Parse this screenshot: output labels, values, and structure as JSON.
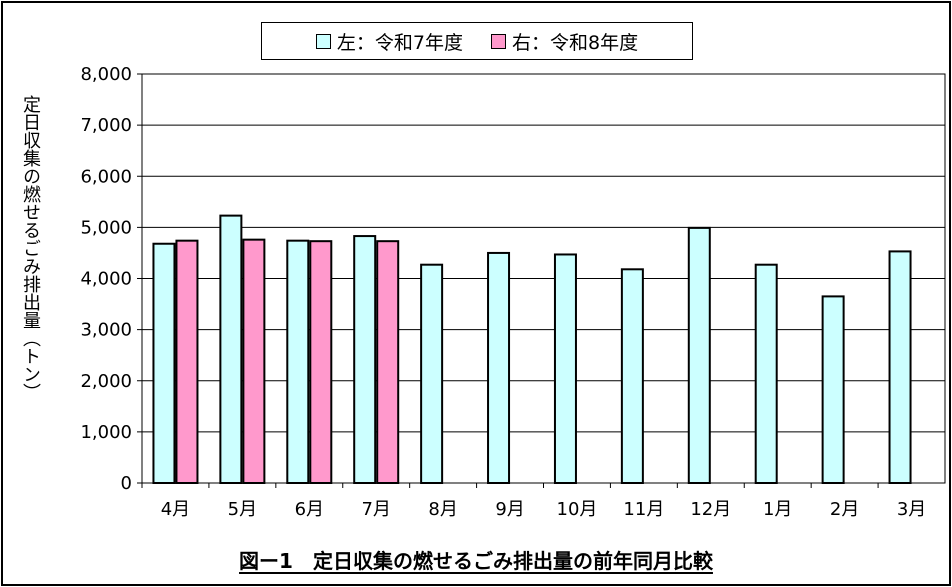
{
  "chart_data": {
    "type": "bar",
    "title": "図ー1　定日収集の燃せるごみ排出量の前年同月比較",
    "ylabel": "定日収集の燃せるごみ排出量（トン）",
    "xlabel": "",
    "ylim": [
      0,
      8000
    ],
    "yticks": [
      "0",
      "1,000",
      "2,000",
      "3,000",
      "4,000",
      "5,000",
      "6,000",
      "7,000",
      "8,000"
    ],
    "grid": true,
    "legend_position": "top",
    "categories": [
      "4月",
      "5月",
      "6月",
      "7月",
      "8月",
      "9月",
      "10月",
      "11月",
      "12月",
      "1月",
      "2月",
      "3月"
    ],
    "series": [
      {
        "name": "左：令和7年度",
        "color": "#ccffff",
        "values": [
          4680,
          5230,
          4740,
          4830,
          4270,
          4500,
          4470,
          4180,
          4990,
          4270,
          3650,
          4530
        ]
      },
      {
        "name": "右：令和8年度",
        "color": "#ff99cc",
        "values": [
          4740,
          4760,
          4730,
          4730,
          null,
          null,
          null,
          null,
          null,
          null,
          null,
          null
        ]
      }
    ]
  }
}
